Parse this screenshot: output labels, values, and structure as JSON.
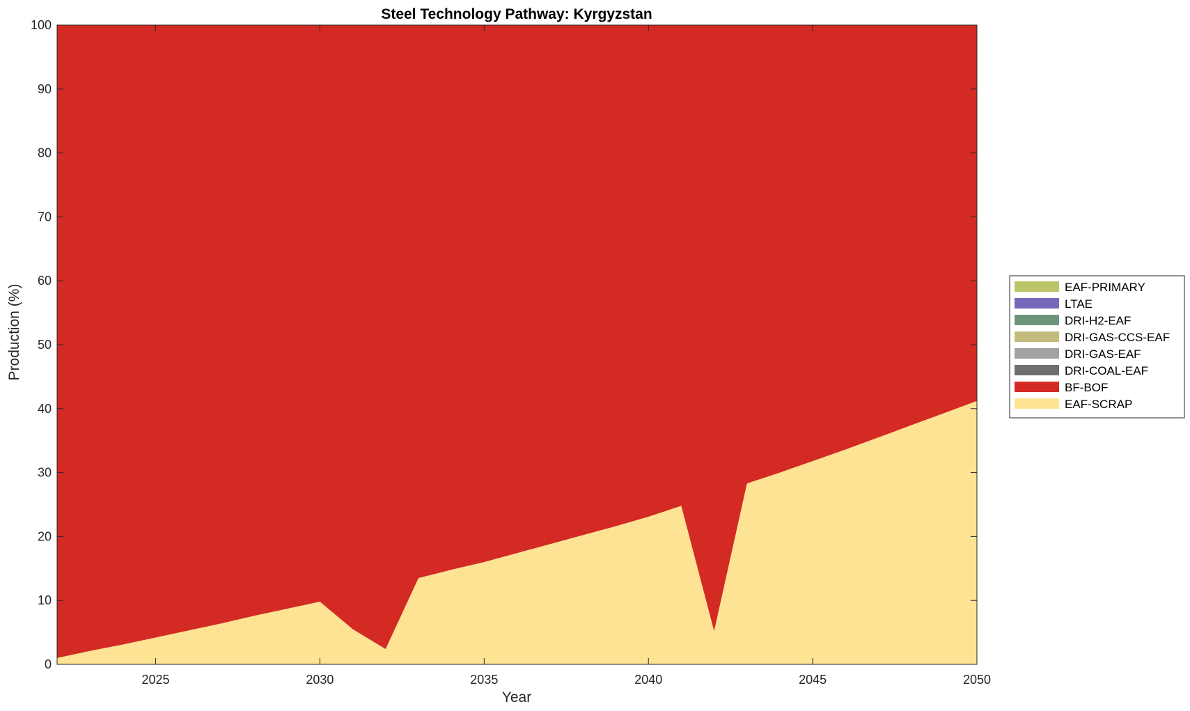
{
  "chart_data": {
    "type": "area",
    "title": "Steel Technology Pathway: Kyrgyzstan",
    "xlabel": "Year",
    "ylabel": "Production (%)",
    "xlim": [
      2022,
      2050
    ],
    "ylim": [
      0,
      100
    ],
    "xticks": [
      2025,
      2030,
      2035,
      2040,
      2045,
      2050
    ],
    "yticks": [
      0,
      10,
      20,
      30,
      40,
      50,
      60,
      70,
      80,
      90,
      100
    ],
    "grid": false,
    "legend_position": "right",
    "x": [
      2022,
      2023,
      2024,
      2025,
      2026,
      2027,
      2028,
      2029,
      2030,
      2031,
      2032,
      2033,
      2034,
      2035,
      2036,
      2037,
      2038,
      2039,
      2040,
      2041,
      2042,
      2043,
      2044,
      2045,
      2046,
      2047,
      2048,
      2049,
      2050
    ],
    "series": [
      {
        "name": "EAF-SCRAP",
        "color": "#fde393",
        "values": [
          1.0,
          2.1,
          3.1,
          4.2,
          5.3,
          6.4,
          7.6,
          8.7,
          9.8,
          5.5,
          2.4,
          13.5,
          14.8,
          16.0,
          17.4,
          18.8,
          20.2,
          21.6,
          23.1,
          24.8,
          5.2,
          28.3,
          30.0,
          31.8,
          33.6,
          35.5,
          37.4,
          39.3,
          41.2
        ]
      },
      {
        "name": "BF-BOF",
        "color": "#d32a23",
        "values": [
          99.0,
          97.9,
          96.9,
          95.8,
          94.7,
          93.6,
          92.4,
          91.3,
          90.2,
          94.5,
          97.6,
          86.5,
          85.2,
          84.0,
          82.6,
          81.2,
          79.8,
          78.4,
          76.9,
          75.2,
          94.8,
          71.7,
          70.0,
          68.2,
          66.4,
          64.5,
          62.6,
          60.7,
          58.8
        ]
      },
      {
        "name": "DRI-COAL-EAF",
        "color": "#6e6e6e",
        "values": [
          0,
          0,
          0,
          0,
          0,
          0,
          0,
          0,
          0,
          0,
          0,
          0,
          0,
          0,
          0,
          0,
          0,
          0,
          0,
          0,
          0,
          0,
          0,
          0,
          0,
          0,
          0,
          0,
          0
        ]
      },
      {
        "name": "DRI-GAS-EAF",
        "color": "#a1a1a1",
        "values": [
          0,
          0,
          0,
          0,
          0,
          0,
          0,
          0,
          0,
          0,
          0,
          0,
          0,
          0,
          0,
          0,
          0,
          0,
          0,
          0,
          0,
          0,
          0,
          0,
          0,
          0,
          0,
          0,
          0
        ]
      },
      {
        "name": "DRI-GAS-CCS-EAF",
        "color": "#c3bc7d",
        "values": [
          0,
          0,
          0,
          0,
          0,
          0,
          0,
          0,
          0,
          0,
          0,
          0,
          0,
          0,
          0,
          0,
          0,
          0,
          0,
          0,
          0,
          0,
          0,
          0,
          0,
          0,
          0,
          0,
          0
        ]
      },
      {
        "name": "DRI-H2-EAF",
        "color": "#6f9479",
        "values": [
          0,
          0,
          0,
          0,
          0,
          0,
          0,
          0,
          0,
          0,
          0,
          0,
          0,
          0,
          0,
          0,
          0,
          0,
          0,
          0,
          0,
          0,
          0,
          0,
          0,
          0,
          0,
          0,
          0
        ]
      },
      {
        "name": "LTAE",
        "color": "#7667b9",
        "values": [
          0,
          0,
          0,
          0,
          0,
          0,
          0,
          0,
          0,
          0,
          0,
          0,
          0,
          0,
          0,
          0,
          0,
          0,
          0,
          0,
          0,
          0,
          0,
          0,
          0,
          0,
          0,
          0,
          0
        ]
      },
      {
        "name": "EAF-PRIMARY",
        "color": "#bcc56a",
        "values": [
          0,
          0,
          0,
          0,
          0,
          0,
          0,
          0,
          0,
          0,
          0,
          0,
          0,
          0,
          0,
          0,
          0,
          0,
          0,
          0,
          0,
          0,
          0,
          0,
          0,
          0,
          0,
          0,
          0
        ]
      }
    ],
    "legend_order": [
      "EAF-PRIMARY",
      "LTAE",
      "DRI-H2-EAF",
      "DRI-GAS-CCS-EAF",
      "DRI-GAS-EAF",
      "DRI-COAL-EAF",
      "BF-BOF",
      "EAF-SCRAP"
    ]
  }
}
